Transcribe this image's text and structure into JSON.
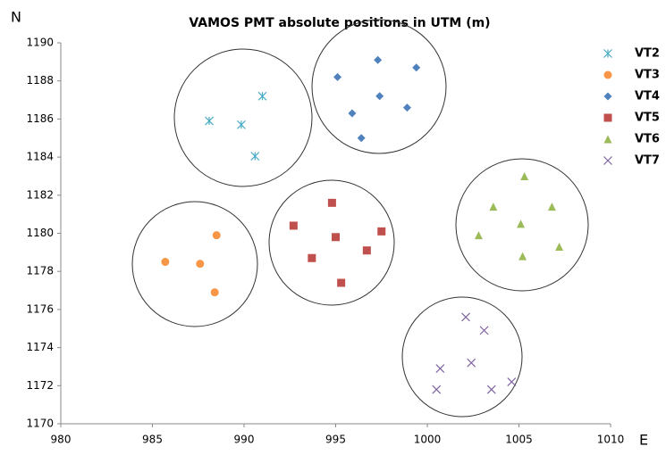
{
  "chart_data": {
    "type": "scatter",
    "title": "VAMOS PMT absolute positions in UTM (m)",
    "x_label": "E",
    "y_label": "N",
    "xlim": [
      980,
      1010
    ],
    "xticks": [
      980,
      985,
      990,
      995,
      1000,
      1005,
      1010
    ],
    "ylim": [
      1170,
      1190
    ],
    "yticks": [
      1170,
      1172,
      1174,
      1176,
      1178,
      1180,
      1182,
      1184,
      1186,
      1188,
      1190
    ],
    "legend": "right",
    "series": [
      {
        "name": "VT2",
        "color": "#4bacc6",
        "marker": "asterisk",
        "x": [
          988.1,
          989.85,
          991.0,
          990.6
        ],
        "values": [
          1185.9,
          1185.7,
          1187.2,
          1184.05
        ]
      },
      {
        "name": "VT3",
        "color": "#f79646",
        "marker": "circle",
        "x": [
          985.7,
          987.6,
          988.5,
          988.4
        ],
        "values": [
          1178.5,
          1178.4,
          1179.9,
          1176.9
        ]
      },
      {
        "name": "VT4",
        "color": "#4f81bd",
        "marker": "diamond",
        "x": [
          995.1,
          997.3,
          999.4,
          997.4,
          995.9,
          998.9,
          996.4
        ],
        "values": [
          1188.2,
          1189.1,
          1188.7,
          1187.2,
          1186.3,
          1186.6,
          1185.0
        ]
      },
      {
        "name": "VT5",
        "color": "#c0504d",
        "marker": "square",
        "x": [
          992.7,
          994.8,
          995.0,
          997.5,
          993.7,
          996.7,
          995.3
        ],
        "values": [
          1180.4,
          1181.6,
          1179.8,
          1180.1,
          1178.7,
          1179.1,
          1177.4
        ]
      },
      {
        "name": "VT6",
        "color": "#9bbb59",
        "marker": "triangle",
        "x": [
          1005.3,
          1003.6,
          1006.8,
          1002.8,
          1005.1,
          1007.2,
          1005.2
        ],
        "values": [
          1183.0,
          1181.4,
          1181.4,
          1179.9,
          1180.5,
          1179.3,
          1178.8
        ]
      },
      {
        "name": "VT7",
        "color": "#8064a2",
        "marker": "x",
        "x": [
          1002.1,
          1003.1,
          1002.4,
          1000.7,
          1000.5,
          1003.5,
          1004.6
        ],
        "values": [
          1175.6,
          1174.9,
          1173.2,
          1172.9,
          1171.8,
          1171.8,
          1172.2
        ]
      }
    ]
  }
}
